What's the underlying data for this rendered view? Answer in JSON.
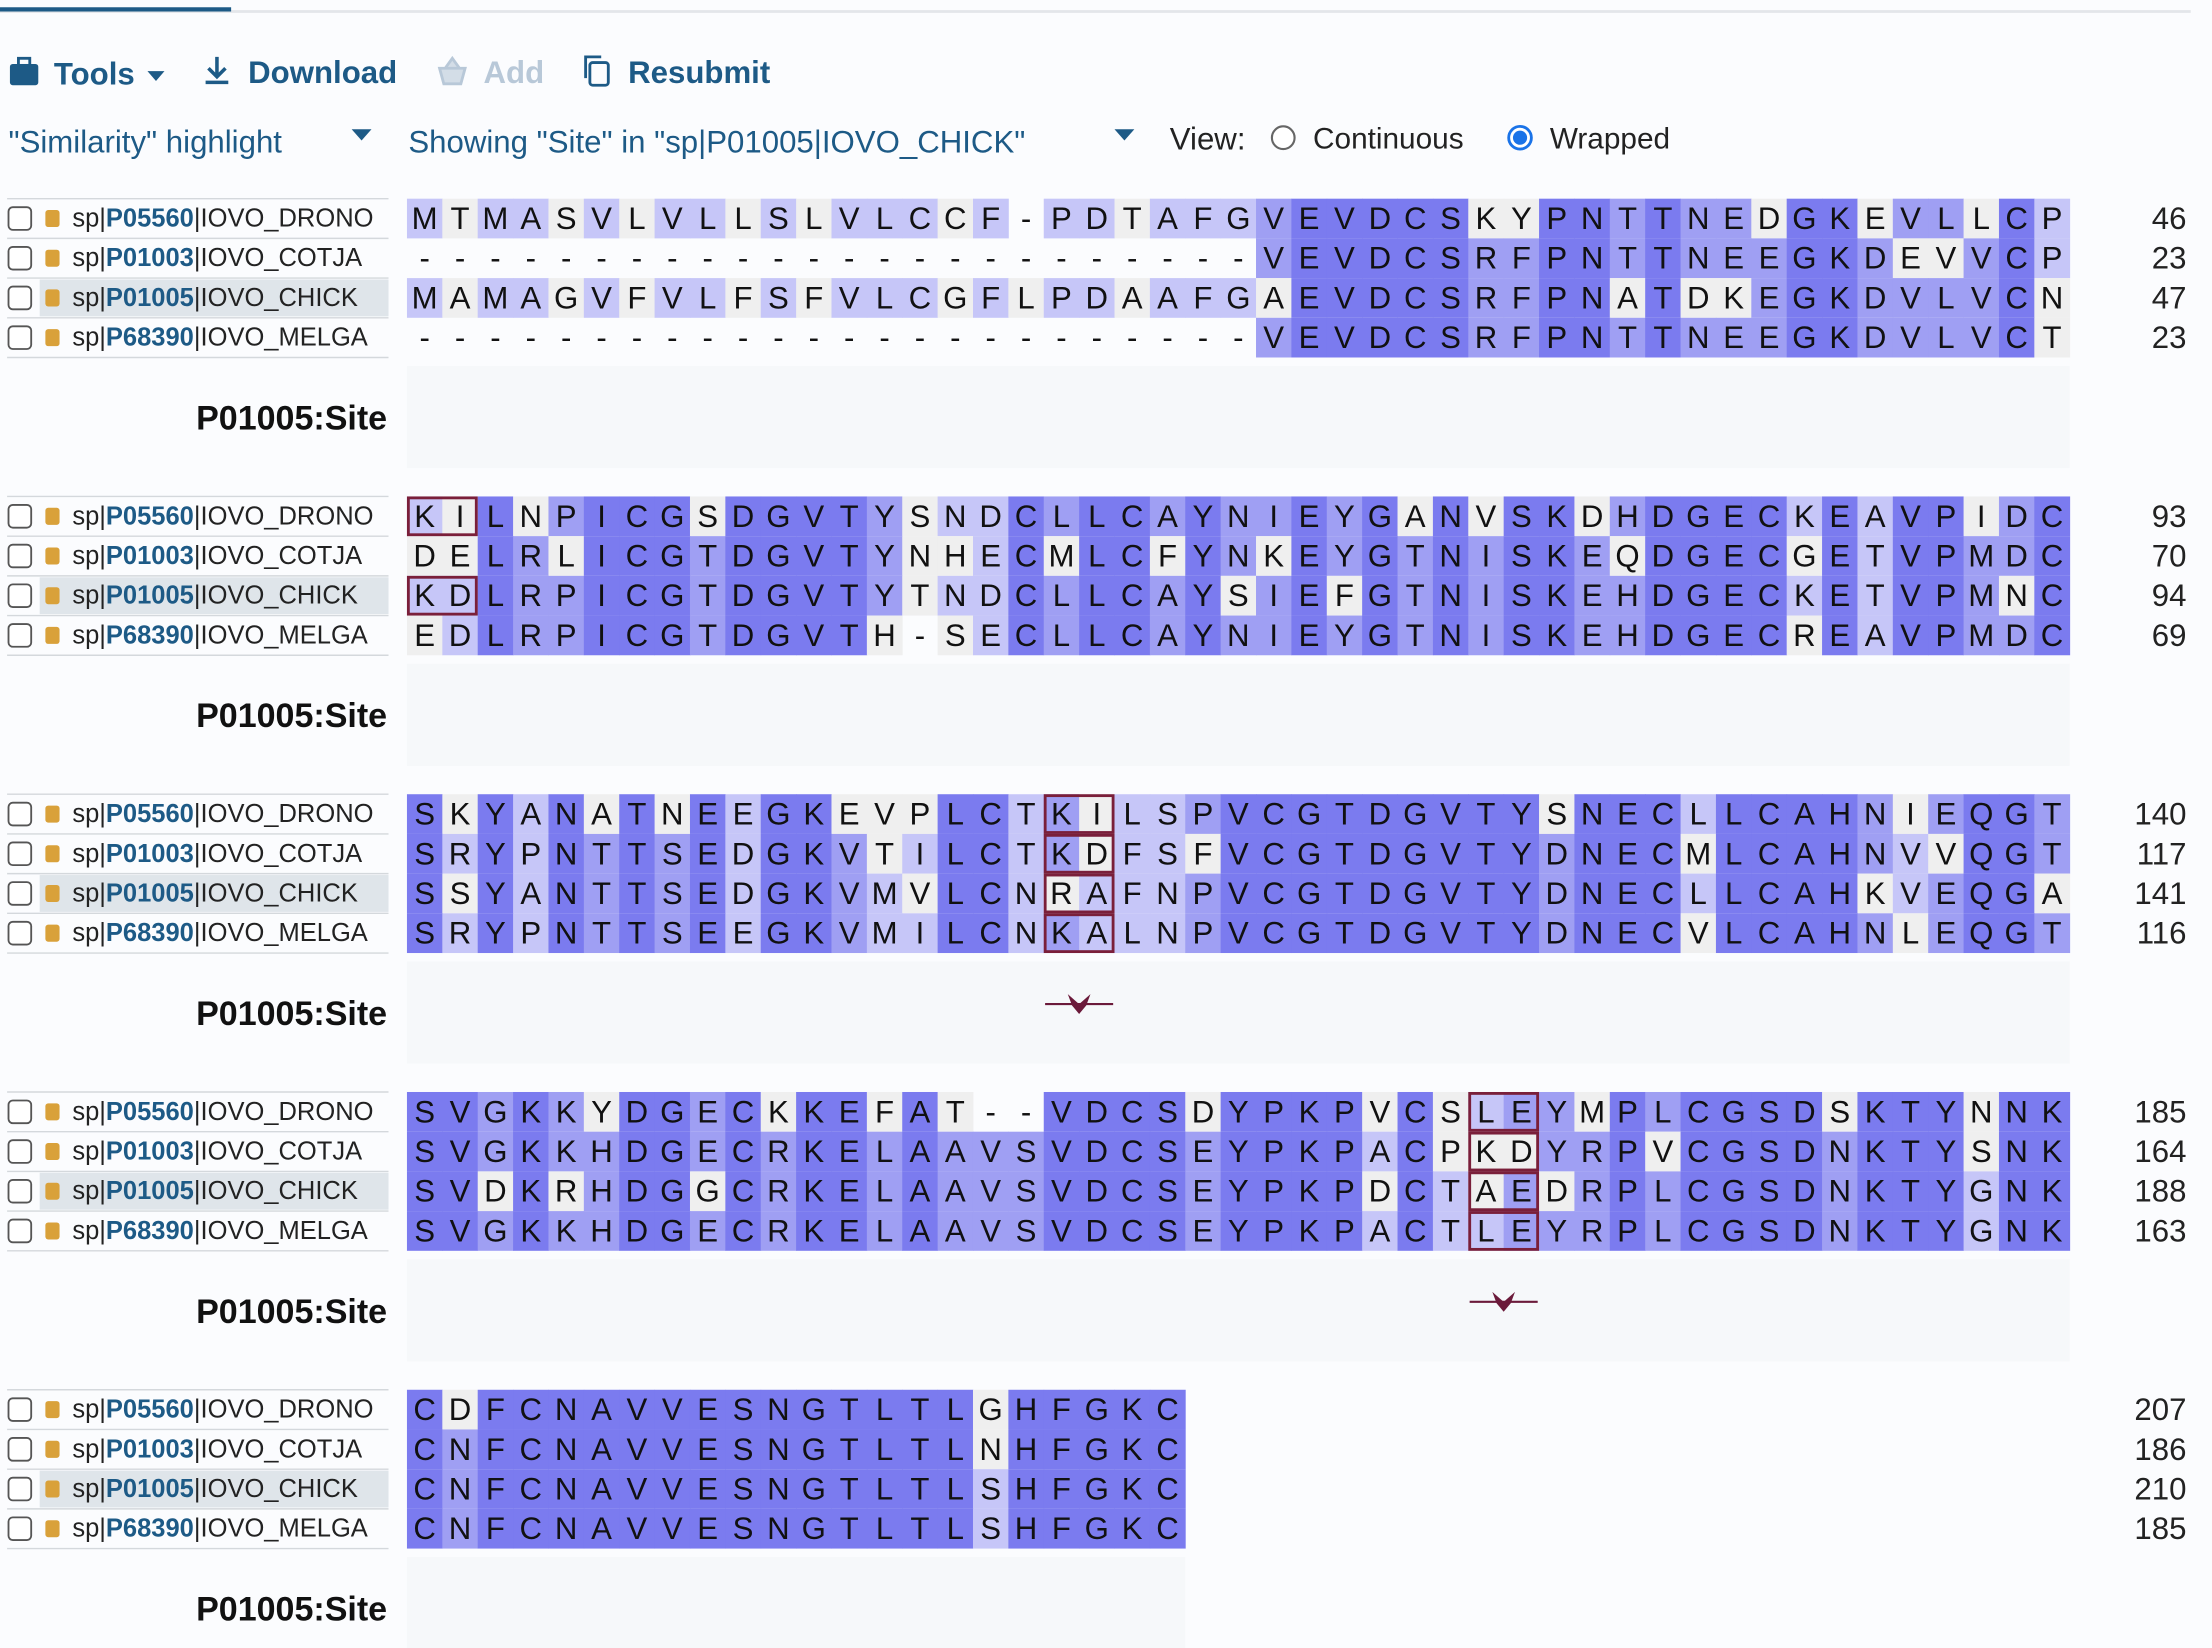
{
  "toolbar": {
    "tools": "Tools",
    "download": "Download",
    "add": "Add",
    "resubmit": "Resubmit"
  },
  "controls": {
    "highlight": "\"Similarity\" highlight",
    "showing": "Showing \"Site\" in \"sp|P01005|IOVO_CHICK\"",
    "view_label": "View:",
    "view_options": [
      {
        "label": "Continuous",
        "checked": false
      },
      {
        "label": "Wrapped",
        "checked": true
      }
    ]
  },
  "sequences": [
    {
      "prefix": "sp|",
      "accession": "P05560",
      "entry": "|IOVO_DRONO"
    },
    {
      "prefix": "sp|",
      "accession": "P01003",
      "entry": "|IOVO_COTJA"
    },
    {
      "prefix": "sp|",
      "accession": "P01005",
      "entry": "|IOVO_CHICK"
    },
    {
      "prefix": "sp|",
      "accession": "P68390",
      "entry": "|IOVO_MELGA"
    }
  ],
  "blocks": [
    {
      "rows": [
        {
          "residues": "MTMASVLVLLSLVLCCF-PDTAFGVEVDCSKYPNTTNEDGKEVLLCP",
          "end": 46
        },
        {
          "residues": "------------------------VEVDCSRFPNTTNEEGKDEVVCP",
          "end": 23
        },
        {
          "residues": "MAMAGVFVLFSFVLCGFLPDAAFGAEVDCSRFPNATDKEGKDVLVCN",
          "end": 47
        },
        {
          "residues": "------------------------VEVDCSRFPNTTNEEGKDVLVCT",
          "end": 23
        }
      ],
      "track_label": "P01005:Site"
    },
    {
      "rows": [
        {
          "residues": "KILNPICGSDGVTYSNDCLLCAYNIEYGANVSKDHDGECKEAVPIDC",
          "end": 93
        },
        {
          "residues": "DELRLICGTDGVTYNHECMLCFYNKEYGTNISKEQDGECGETVPMDC",
          "end": 70
        },
        {
          "residues": "KDLRPICGTDGVTYTNDCLLCAYSIEFGTNISKEHDGECKETVPMNC",
          "end": 94
        },
        {
          "residues": "EDLRPICGTDGVTH-SECLLCAYNIEYGTNISKEHDGECREAVPMDC",
          "end": 69
        }
      ],
      "track_label": "P01005:Site"
    },
    {
      "rows": [
        {
          "residues": "SKYANATNEEGKEVPLCTKILSPVCGTDGVTYSNECLLCAHNIEQGT",
          "end": 140
        },
        {
          "residues": "SRYPNTTSEDGKVTILCTKDFSFVCGTDGVTYDNECMLCAHNVVQGT",
          "end": 117
        },
        {
          "residues": "SSYANTTSEDGKVMVLCNRAFNPVCGTDGVTYDNECLLCAHKVEQGA",
          "end": 141
        },
        {
          "residues": "SRYPNTTSEEGKVMILCNKALNPVCGTDGVTYDNECVLCAHNLEQGT",
          "end": 116
        }
      ],
      "track_label": "P01005:Site"
    },
    {
      "rows": [
        {
          "residues": "SVGKKYDGECKKEFAT--VDCSDYPKPVCSLEYMPLCGSDSKTYNNK",
          "end": 185
        },
        {
          "residues": "SVGKKHDGECRKELAAVSVDCSEYPKPACPKDYRPVCGSDNKTYSNK",
          "end": 164
        },
        {
          "residues": "SVDKRHDGGCRKELAAVSVDCSEYPKPDCTAEDRPLCGSDNKTYGNK",
          "end": 188
        },
        {
          "residues": "SVGKKHDGECRKELAAVSVDCSEYPKPACTLEYRPLCGSDNKTYGNK",
          "end": 163
        }
      ],
      "track_label": "P01005:Site"
    },
    {
      "rows": [
        {
          "residues": "CDFCNAVVESNGTLTLGHFGKC",
          "end": 207
        },
        {
          "residues": "CNFCNAVVESNGTLTLNHFGKC",
          "end": 186
        },
        {
          "residues": "CNFCNAVVESNGTLTLSHFGKC",
          "end": 210
        },
        {
          "residues": "CNFCNAVVESNGTLTLSHFGKC",
          "end": 185
        }
      ],
      "track_label": "P01005:Site"
    }
  ]
}
